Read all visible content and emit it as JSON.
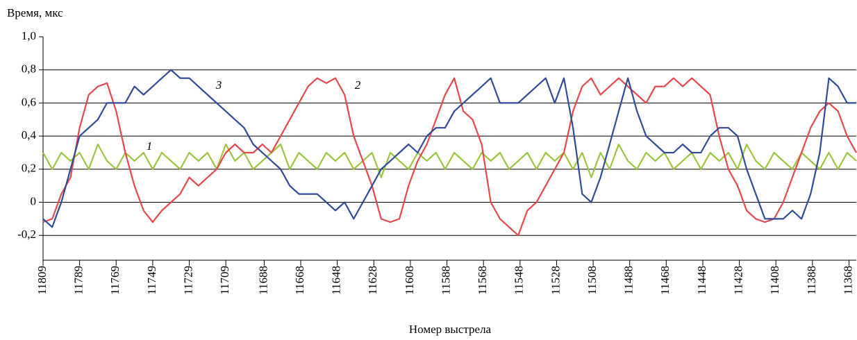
{
  "chart_data": {
    "type": "line",
    "y_label": "Время, мкс",
    "x_label": "Номер выстрела",
    "x": [
      11809,
      11804,
      11799,
      11794,
      11789,
      11784,
      11779,
      11774,
      11769,
      11764,
      11759,
      11754,
      11749,
      11744,
      11739,
      11734,
      11729,
      11724,
      11719,
      11714,
      11709,
      11704,
      11699,
      11694,
      11689,
      11684,
      11679,
      11674,
      11669,
      11664,
      11659,
      11654,
      11649,
      11644,
      11639,
      11634,
      11629,
      11624,
      11619,
      11614,
      11609,
      11604,
      11599,
      11594,
      11589,
      11584,
      11579,
      11574,
      11569,
      11564,
      11559,
      11554,
      11549,
      11544,
      11539,
      11534,
      11529,
      11524,
      11519,
      11514,
      11509,
      11504,
      11499,
      11494,
      11489,
      11484,
      11479,
      11474,
      11469,
      11464,
      11459,
      11454,
      11449,
      11444,
      11439,
      11434,
      11429,
      11424,
      11419,
      11414,
      11409,
      11404,
      11399,
      11394,
      11389,
      11384,
      11379,
      11374,
      11369,
      11364
    ],
    "series": [
      {
        "name": "1",
        "color": "#9bc53d",
        "values": [
          0.3,
          0.2,
          0.3,
          0.25,
          0.3,
          0.2,
          0.35,
          0.25,
          0.2,
          0.3,
          0.25,
          0.3,
          0.2,
          0.3,
          0.25,
          0.2,
          0.3,
          0.25,
          0.3,
          0.2,
          0.35,
          0.25,
          0.3,
          0.2,
          0.25,
          0.3,
          0.35,
          0.2,
          0.3,
          0.25,
          0.2,
          0.3,
          0.25,
          0.3,
          0.2,
          0.25,
          0.3,
          0.15,
          0.3,
          0.25,
          0.2,
          0.3,
          0.25,
          0.3,
          0.2,
          0.3,
          0.25,
          0.2,
          0.3,
          0.25,
          0.3,
          0.2,
          0.25,
          0.3,
          0.2,
          0.3,
          0.25,
          0.3,
          0.2,
          0.3,
          0.15,
          0.3,
          0.2,
          0.35,
          0.25,
          0.2,
          0.3,
          0.25,
          0.3,
          0.2,
          0.25,
          0.3,
          0.2,
          0.3,
          0.25,
          0.3,
          0.2,
          0.35,
          0.25,
          0.2,
          0.3,
          0.25,
          0.2,
          0.3,
          0.25,
          0.2,
          0.3,
          0.2,
          0.3,
          0.25
        ]
      },
      {
        "name": "2",
        "color": "#e8474a",
        "values": [
          -0.12,
          -0.1,
          0.05,
          0.15,
          0.45,
          0.65,
          0.7,
          0.72,
          0.55,
          0.3,
          0.1,
          -0.05,
          -0.12,
          -0.05,
          0.0,
          0.05,
          0.15,
          0.1,
          0.15,
          0.2,
          0.3,
          0.35,
          0.3,
          0.3,
          0.35,
          0.3,
          0.4,
          0.5,
          0.6,
          0.7,
          0.75,
          0.72,
          0.75,
          0.65,
          0.4,
          0.25,
          0.1,
          -0.1,
          -0.12,
          -0.1,
          0.1,
          0.25,
          0.35,
          0.5,
          0.65,
          0.75,
          0.55,
          0.5,
          0.35,
          0.0,
          -0.1,
          -0.15,
          -0.2,
          -0.05,
          0.0,
          0.1,
          0.2,
          0.3,
          0.55,
          0.7,
          0.75,
          0.65,
          0.7,
          0.75,
          0.7,
          0.65,
          0.6,
          0.7,
          0.7,
          0.75,
          0.7,
          0.75,
          0.7,
          0.65,
          0.4,
          0.2,
          0.1,
          -0.05,
          -0.1,
          -0.12,
          -0.1,
          0.0,
          0.15,
          0.3,
          0.45,
          0.55,
          0.6,
          0.55,
          0.4,
          0.3
        ]
      },
      {
        "name": "3",
        "color": "#2e4b9b",
        "values": [
          -0.1,
          -0.15,
          0.0,
          0.2,
          0.4,
          0.45,
          0.5,
          0.6,
          0.6,
          0.6,
          0.7,
          0.65,
          0.7,
          0.75,
          0.8,
          0.75,
          0.75,
          0.7,
          0.65,
          0.6,
          0.55,
          0.5,
          0.45,
          0.35,
          0.3,
          0.25,
          0.2,
          0.1,
          0.05,
          0.05,
          0.05,
          0.0,
          -0.05,
          0.0,
          -0.1,
          0.0,
          0.1,
          0.2,
          0.25,
          0.3,
          0.35,
          0.3,
          0.4,
          0.45,
          0.45,
          0.55,
          0.6,
          0.65,
          0.7,
          0.75,
          0.6,
          0.6,
          0.6,
          0.65,
          0.7,
          0.75,
          0.6,
          0.75,
          0.45,
          0.05,
          0.0,
          0.15,
          0.35,
          0.55,
          0.75,
          0.55,
          0.4,
          0.35,
          0.3,
          0.3,
          0.35,
          0.3,
          0.3,
          0.4,
          0.45,
          0.45,
          0.4,
          0.2,
          0.05,
          -0.1,
          -0.1,
          -0.1,
          -0.05,
          -0.1,
          0.05,
          0.3,
          0.75,
          0.7,
          0.6,
          0.6
        ]
      }
    ],
    "xlim": [
      11809,
      11364
    ],
    "xticks": [
      11809,
      11789,
      11769,
      11749,
      11729,
      11709,
      11688,
      11668,
      11648,
      11628,
      11608,
      11588,
      11568,
      11548,
      11528,
      11508,
      11488,
      11468,
      11448,
      11428,
      11408,
      11388,
      11368
    ],
    "ylim": [
      -0.35,
      1.0
    ],
    "yticks": [
      {
        "value": 1.0,
        "label": "1,0"
      },
      {
        "value": 0.8,
        "label": "0,8"
      },
      {
        "value": 0.6,
        "label": "0,6"
      },
      {
        "value": 0.4,
        "label": "0,4"
      },
      {
        "value": 0.2,
        "label": "0,2"
      },
      0,
      {
        "value": -0.2,
        "label": "-0,2"
      }
    ],
    "grid": true
  }
}
